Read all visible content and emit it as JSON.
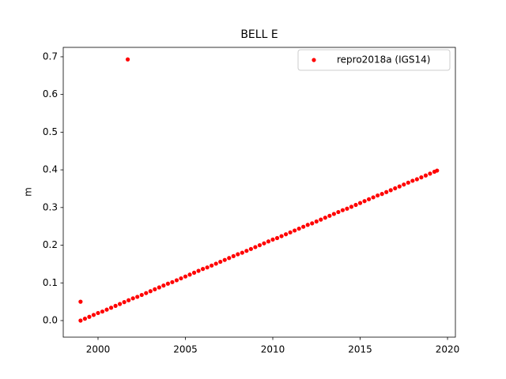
{
  "chart_data": {
    "type": "scatter",
    "title": "BELL E",
    "y_label": "m",
    "xlim": [
      1998.01,
      2020.45
    ],
    "ylim": [
      -0.044,
      0.725
    ],
    "xticks": [
      2000,
      2005,
      2010,
      2015,
      2020
    ],
    "yticks": [
      {
        "value": 0,
        "label": "0.0"
      },
      0.1,
      0.2,
      0.3,
      0.4,
      0.5,
      0.6,
      0.7
    ],
    "grid": false,
    "legend": "upper right",
    "series": [
      {
        "name": "repro2018a (IGS14)",
        "color": "#ff0000",
        "x": [
          1999.0,
          2001.7,
          1999.0,
          1999.25,
          1999.5,
          1999.75,
          2000.0,
          2000.25,
          2000.5,
          2000.75,
          2001.0,
          2001.25,
          2001.5,
          2001.75,
          2002.0,
          2002.25,
          2002.5,
          2002.75,
          2003.0,
          2003.25,
          2003.5,
          2003.75,
          2004.0,
          2004.25,
          2004.5,
          2004.75,
          2005.0,
          2005.25,
          2005.5,
          2005.75,
          2006.0,
          2006.25,
          2006.5,
          2006.75,
          2007.0,
          2007.25,
          2007.5,
          2007.75,
          2008.0,
          2008.25,
          2008.5,
          2008.75,
          2009.0,
          2009.25,
          2009.5,
          2009.75,
          2010.0,
          2010.25,
          2010.5,
          2010.75,
          2011.0,
          2011.25,
          2011.5,
          2011.75,
          2012.0,
          2012.25,
          2012.5,
          2012.75,
          2013.0,
          2013.25,
          2013.5,
          2013.75,
          2014.0,
          2014.25,
          2014.5,
          2014.75,
          2015.0,
          2015.25,
          2015.5,
          2015.75,
          2016.0,
          2016.25,
          2016.5,
          2016.75,
          2017.0,
          2017.25,
          2017.5,
          2017.75,
          2018.0,
          2018.25,
          2018.5,
          2018.75,
          2019.0,
          2019.25,
          2019.4
        ],
        "values": [
          0.05,
          0.693,
          0.0,
          0.005,
          0.01,
          0.015,
          0.02,
          0.024,
          0.029,
          0.034,
          0.039,
          0.044,
          0.049,
          0.054,
          0.059,
          0.063,
          0.068,
          0.073,
          0.078,
          0.083,
          0.088,
          0.093,
          0.098,
          0.102,
          0.107,
          0.112,
          0.117,
          0.122,
          0.127,
          0.132,
          0.137,
          0.141,
          0.146,
          0.151,
          0.156,
          0.161,
          0.166,
          0.171,
          0.176,
          0.18,
          0.185,
          0.19,
          0.195,
          0.2,
          0.205,
          0.21,
          0.215,
          0.219,
          0.224,
          0.229,
          0.234,
          0.239,
          0.244,
          0.249,
          0.254,
          0.258,
          0.263,
          0.268,
          0.273,
          0.278,
          0.283,
          0.288,
          0.293,
          0.297,
          0.302,
          0.307,
          0.312,
          0.317,
          0.322,
          0.327,
          0.332,
          0.336,
          0.341,
          0.346,
          0.351,
          0.356,
          0.361,
          0.366,
          0.371,
          0.375,
          0.38,
          0.385,
          0.39,
          0.395,
          0.398
        ]
      }
    ]
  }
}
